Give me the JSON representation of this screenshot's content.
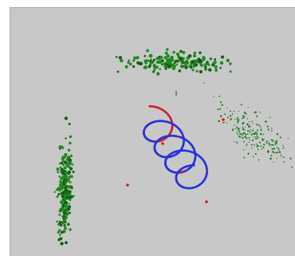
{
  "viewer": {
    "background_color": "#c8c8c8",
    "cluster_color": "#1f8a1f",
    "cluster_dark_color": "#0e5e0e",
    "helix_blue": "#2233dd",
    "helix_red": "#cc2233",
    "marker_color": "#ee1111"
  },
  "scene": {
    "objects": [
      {
        "name": "point-cluster-top",
        "kind": "cluster",
        "points": 160
      },
      {
        "name": "point-cluster-right",
        "kind": "cluster",
        "points": 200
      },
      {
        "name": "point-cluster-left",
        "kind": "cluster",
        "points": 230
      },
      {
        "name": "helix-trajectory",
        "kind": "spiral",
        "turns": 4
      },
      {
        "name": "center-marker",
        "kind": "marker"
      }
    ]
  }
}
